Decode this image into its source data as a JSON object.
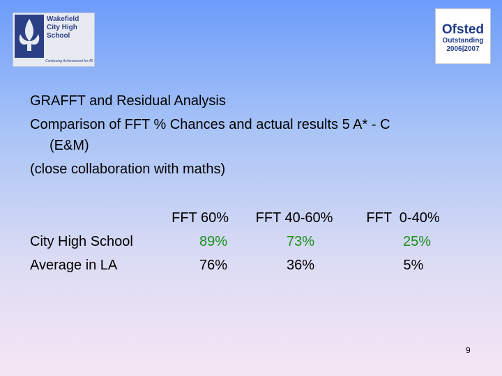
{
  "header": {
    "school_logo": {
      "name": "Wakefield City High School",
      "tagline": "Continuing Achievement for All"
    },
    "ofsted_logo": {
      "name": "Ofsted",
      "grade": "Outstanding",
      "years": "2006|2007"
    }
  },
  "body": {
    "lines": [
      "GRAFFT and Residual Analysis",
      "Comparison of FFT % Chances and actual results 5 A* - C",
      "(E&M)",
      "(close collaboration with maths)"
    ]
  },
  "table": {
    "columns": [
      "FFT 60%",
      "FFT 40-60%",
      "FFT  0-40%"
    ],
    "rows": [
      [
        "City High School",
        "89%",
        "73%",
        "25%"
      ],
      [
        "Average in LA",
        "76%",
        "36%",
        "5%"
      ]
    ]
  },
  "footer": {
    "page_number": "9"
  }
}
